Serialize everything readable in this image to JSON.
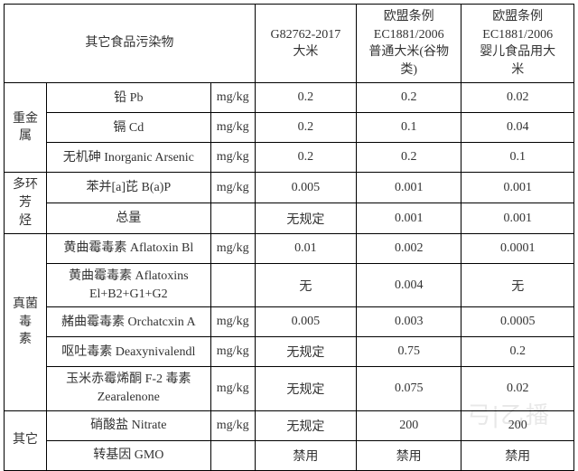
{
  "headers": {
    "category_title": "其它食品污染物",
    "gb": "G82762-2017\n大米",
    "eu_regular": "欧盟条例\nEC1881/2006\n普通大米(谷物\n类)",
    "eu_baby": "欧盟条例\nEC1881/2006\n婴儿食品用大\n米"
  },
  "unit_default": "mg/kg",
  "categories": [
    {
      "name": "重金属",
      "rows": [
        {
          "param": "铅 Pb",
          "unit": "mg/kg",
          "gb": "0.2",
          "eu1": "0.2",
          "eu2": "0.02"
        },
        {
          "param": "镉 Cd",
          "unit": "mg/kg",
          "gb": "0.2",
          "eu1": "0.1",
          "eu2": "0.04"
        },
        {
          "param": "无机砷 Inorganic Arsenic",
          "unit": "mg/kg",
          "gb": "0.2",
          "eu1": "0.2",
          "eu2": "0.1"
        }
      ]
    },
    {
      "name": "多环芳\n烃",
      "rows": [
        {
          "param": "苯并[a]芘 B(a)P",
          "unit": "mg/kg",
          "gb": "0.005",
          "eu1": "0.001",
          "eu2": "0.001"
        },
        {
          "param": "总量",
          "unit": "",
          "gb": "无规定",
          "eu1": "0.001",
          "eu2": "0.001"
        }
      ]
    },
    {
      "name": "真菌毒\n素",
      "rows": [
        {
          "param": "黄曲霉毒素 Aflatoxin Bl",
          "unit": "mg/kg",
          "gb": "0.01",
          "eu1": "0.002",
          "eu2": "0.0001"
        },
        {
          "param": "黄曲霉毒素 Aflatoxins\nEl+B2+G1+G2",
          "unit": "",
          "gb": "无",
          "eu1": "0.004",
          "eu2": "无",
          "tall": true
        },
        {
          "param": "赭曲霉毒素 Orchatcxin A",
          "unit": "mg/kg",
          "gb": "0.005",
          "eu1": "0.003",
          "eu2": "0.0005"
        },
        {
          "param": "呕吐毒素 Deaxynivalendl",
          "unit": "mg/kg",
          "gb": "无规定",
          "eu1": "0.75",
          "eu2": "0.2"
        },
        {
          "param": "玉米赤霉烯酮 F-2 毒素\nZearalenone",
          "unit": "mg/kg",
          "gb": "无规定",
          "eu1": "0.075",
          "eu2": "0.02",
          "tall": true
        }
      ]
    },
    {
      "name": "其它",
      "rows": [
        {
          "param": "硝酸盐 Nitrate",
          "unit": "mg/kg",
          "gb": "无规定",
          "eu1": "200",
          "eu2": "200"
        },
        {
          "param": "转基因 GMO",
          "unit": "",
          "gb": "禁用",
          "eu1": "禁用",
          "eu2": "禁用"
        }
      ]
    }
  ],
  "watermark_text": "弓|乙播",
  "styling": {
    "border_color": "#000000",
    "background_color": "#ffffff",
    "text_color": "#333333",
    "font_size": 14,
    "watermark_color": "#e8e8e8"
  }
}
